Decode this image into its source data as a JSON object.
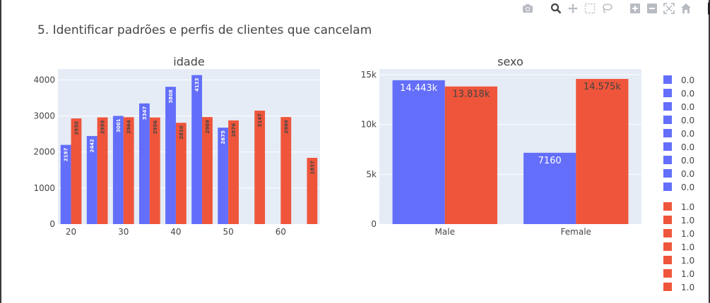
{
  "page": {
    "title": "5. Identificar padrões e perfis de clientes que cancelam"
  },
  "toolbar": {
    "icons": [
      "camera-icon",
      "zoom-icon",
      "pan-icon",
      "box-select-icon",
      "lasso-select-icon",
      "zoom-in-icon",
      "zoom-out-icon",
      "autoscale-icon",
      "reset-axes-icon",
      "plotly-logo-icon"
    ]
  },
  "colors": {
    "series_0": "#636efa",
    "series_1": "#ef553b",
    "plot_bg": "#e5ecf6"
  },
  "chart_data": [
    {
      "type": "bar",
      "title": "idade",
      "xlabel": "",
      "ylabel": "",
      "x_ticks": [
        "20",
        "30",
        "40",
        "50",
        "60"
      ],
      "y_ticks": [
        "0",
        "1000",
        "2000",
        "3000",
        "4000"
      ],
      "xlim": [
        17.5,
        67.5
      ],
      "ylim": [
        0,
        4300
      ],
      "grid": true,
      "series": [
        {
          "name": "0.0",
          "color": "#636efa",
          "points": [
            {
              "x": 20,
              "y": 2197,
              "label": "2197"
            },
            {
              "x": 25,
              "y": 2442,
              "label": "2442"
            },
            {
              "x": 30,
              "y": 3001,
              "label": "3001"
            },
            {
              "x": 35,
              "y": 3347,
              "label": "3347"
            },
            {
              "x": 40,
              "y": 3808,
              "label": "3808"
            },
            {
              "x": 45,
              "y": 4133,
              "label": "4133"
            },
            {
              "x": 50,
              "y": 2675,
              "label": "2675"
            }
          ]
        },
        {
          "name": "1.0",
          "color": "#ef553b",
          "points": [
            {
              "x": 20,
              "y": 2930,
              "label": "2930"
            },
            {
              "x": 25,
              "y": 2959,
              "label": "2959"
            },
            {
              "x": 30,
              "y": 2964,
              "label": "2964"
            },
            {
              "x": 35,
              "y": 2956,
              "label": "2956"
            },
            {
              "x": 40,
              "y": 2810,
              "label": "2810"
            },
            {
              "x": 45,
              "y": 2969,
              "label": "2969"
            },
            {
              "x": 50,
              "y": 2876,
              "label": "2876"
            },
            {
              "x": 55,
              "y": 3147,
              "label": "3147"
            },
            {
              "x": 60,
              "y": 2969,
              "label": "2969"
            },
            {
              "x": 65,
              "y": 1837,
              "label": "1837"
            }
          ]
        }
      ]
    },
    {
      "type": "bar",
      "title": "sexo",
      "xlabel": "",
      "ylabel": "",
      "categories": [
        "Male",
        "Female"
      ],
      "y_ticks": [
        "0",
        "5k",
        "10k",
        "15k"
      ],
      "ylim": [
        0,
        15000
      ],
      "grid": true,
      "series": [
        {
          "name": "0.0",
          "color": "#636efa",
          "values": [
            14443,
            7160
          ],
          "labels": [
            "14.443k",
            "7160"
          ]
        },
        {
          "name": "1.0",
          "color": "#ef553b",
          "values": [
            13818,
            14575
          ],
          "labels": [
            "13.818k",
            "14.575k"
          ]
        }
      ]
    }
  ],
  "legend": {
    "placement": "right",
    "items": [
      {
        "label": "0.0",
        "color": "#636efa"
      },
      {
        "label": "0.0",
        "color": "#636efa"
      },
      {
        "label": "0.0",
        "color": "#636efa"
      },
      {
        "label": "0.0",
        "color": "#636efa"
      },
      {
        "label": "0.0",
        "color": "#636efa"
      },
      {
        "label": "0.0",
        "color": "#636efa"
      },
      {
        "label": "0.0",
        "color": "#636efa"
      },
      {
        "label": "0.0",
        "color": "#636efa"
      },
      {
        "label": "0.0",
        "color": "#636efa"
      },
      {
        "label": "1.0",
        "color": "#ef553b"
      },
      {
        "label": "1.0",
        "color": "#ef553b"
      },
      {
        "label": "1.0",
        "color": "#ef553b"
      },
      {
        "label": "1.0",
        "color": "#ef553b"
      },
      {
        "label": "1.0",
        "color": "#ef553b"
      },
      {
        "label": "1.0",
        "color": "#ef553b"
      },
      {
        "label": "1.0",
        "color": "#ef553b"
      }
    ]
  }
}
